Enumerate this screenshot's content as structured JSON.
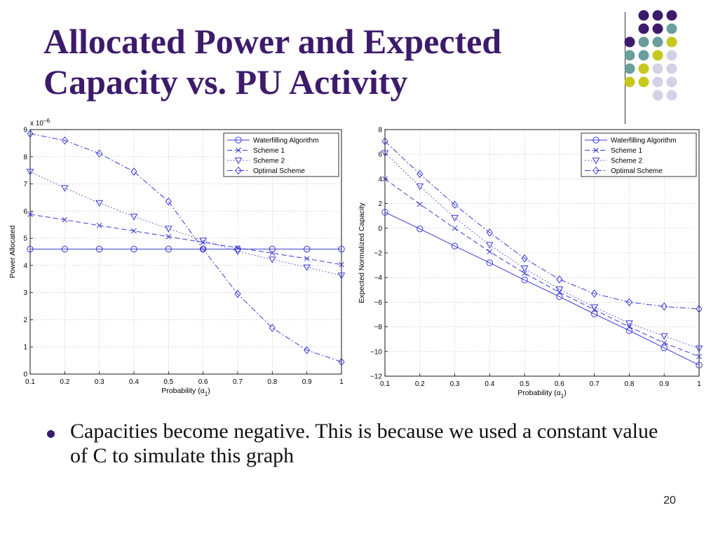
{
  "slide": {
    "title_line1": "Allocated Power and Expected",
    "title_line2": "Capacity vs. PU Activity",
    "bullet": "Capacities become negative. This is because we used a constant value of C to simulate this graph",
    "page_number": "20"
  },
  "colors": {
    "title": "#3d1b6b",
    "dot_purple": "#3d1b6b",
    "dot_teal": "#6a9e9c",
    "dot_olive": "#c6c81e",
    "dot_lavender": "#d3d1e6",
    "series": "#3b3bd6"
  },
  "chart_data": [
    {
      "type": "line",
      "xlabel": "Probability (α",
      "xlabel_sub": "1",
      "xlabel_tail": ")",
      "ylabel": "Power Allocated",
      "exponent_label": "x 10",
      "exponent_power": "−6",
      "xlim": [
        0.1,
        1
      ],
      "ylim": [
        0,
        9
      ],
      "xticks": [
        "0.1",
        "0.2",
        "0.3",
        "0.4",
        "0.5",
        "0.6",
        "0.7",
        "0.8",
        "0.9",
        "1"
      ],
      "yticks": [
        "0",
        "1",
        "2",
        "3",
        "4",
        "5",
        "6",
        "7",
        "8",
        "9"
      ],
      "grid": true,
      "legend_position": "top-right",
      "x": [
        0.1,
        0.2,
        0.3,
        0.4,
        0.5,
        0.6,
        0.7,
        0.8,
        0.9,
        1.0
      ],
      "series": [
        {
          "name": "Waterfilling Algorithm",
          "marker": "circle",
          "dash": "solid",
          "values": [
            4.6,
            4.6,
            4.6,
            4.6,
            4.6,
            4.6,
            4.6,
            4.6,
            4.6,
            4.6
          ]
        },
        {
          "name": "Scheme 1",
          "marker": "x",
          "dash": "dashed",
          "values": [
            5.88,
            5.68,
            5.47,
            5.27,
            5.06,
            4.85,
            4.65,
            4.45,
            4.25,
            4.03
          ]
        },
        {
          "name": "Scheme 2",
          "marker": "triangle",
          "dash": "dotted",
          "values": [
            7.45,
            6.85,
            6.3,
            5.8,
            5.35,
            4.92,
            4.52,
            4.22,
            3.93,
            3.63
          ]
        },
        {
          "name": "Optimal Scheme",
          "marker": "diamond",
          "dash": "dashdot",
          "values": [
            8.85,
            8.6,
            8.12,
            7.45,
            6.35,
            4.6,
            2.95,
            1.7,
            0.88,
            0.45
          ]
        }
      ]
    },
    {
      "type": "line",
      "xlabel": "Probability (α",
      "xlabel_sub": "1",
      "xlabel_tail": ")",
      "ylabel": "Expected Normalized Capacity",
      "xlim": [
        0.1,
        1
      ],
      "ylim": [
        -12,
        8
      ],
      "xticks": [
        "0.1",
        "0.2",
        "0.3",
        "0.4",
        "0.5",
        "0.6",
        "0.7",
        "0.8",
        "0.9",
        "1"
      ],
      "yticks": [
        "−12",
        "−10",
        "−8",
        "−6",
        "−4",
        "−2",
        "0",
        "2",
        "4",
        "6",
        "8"
      ],
      "grid": true,
      "legend_position": "top-right",
      "x": [
        0.1,
        0.2,
        0.3,
        0.4,
        0.5,
        0.6,
        0.7,
        0.8,
        0.9,
        1.0
      ],
      "series": [
        {
          "name": "Waterfilling Algorithm",
          "marker": "circle",
          "dash": "solid",
          "values": [
            1.3,
            -0.05,
            -1.45,
            -2.8,
            -4.2,
            -5.55,
            -6.95,
            -8.3,
            -9.7,
            -11.1
          ]
        },
        {
          "name": "Scheme 1",
          "marker": "x",
          "dash": "dashed",
          "values": [
            4.0,
            1.95,
            0.0,
            -1.9,
            -3.65,
            -5.2,
            -6.6,
            -8.0,
            -9.3,
            -10.4
          ]
        },
        {
          "name": "Scheme 2",
          "marker": "triangle",
          "dash": "dotted",
          "values": [
            6.1,
            3.4,
            0.85,
            -1.35,
            -3.25,
            -4.95,
            -6.4,
            -7.7,
            -8.75,
            -9.75
          ]
        },
        {
          "name": "Optimal Scheme",
          "marker": "diamond",
          "dash": "dashdot",
          "values": [
            7.05,
            4.4,
            1.9,
            -0.35,
            -2.45,
            -4.15,
            -5.3,
            -6.0,
            -6.35,
            -6.55
          ]
        }
      ]
    }
  ]
}
